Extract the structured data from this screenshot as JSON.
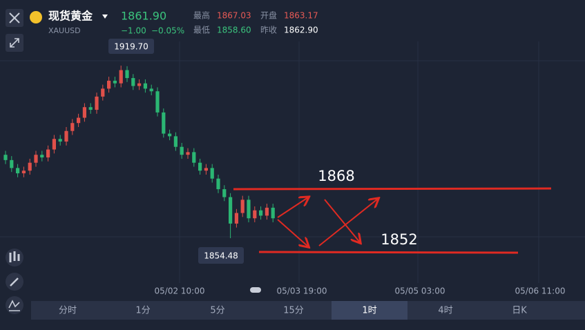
{
  "header": {
    "name": "现货黄金",
    "symbol": "XAUUSD",
    "price": "1861.90",
    "change": "−1.00",
    "change_pct": "−0.05%",
    "stats": [
      {
        "label": "最高",
        "value": "1867.03"
      },
      {
        "label": "开盘",
        "value": "1863.17"
      },
      {
        "label": "最低",
        "value": "1858.60"
      },
      {
        "label": "昨收",
        "value": "1862.90"
      }
    ]
  },
  "chart_data": {
    "type": "candlestick",
    "ylim": [
      1831,
      1944.5
    ],
    "open": [
      1886,
      1884,
      1881,
      1879,
      1880,
      1883,
      1886,
      1885,
      1888,
      1892,
      1891,
      1895,
      1898,
      1900,
      1904,
      1903,
      1908,
      1911,
      1914,
      1913,
      1918,
      1915,
      1912,
      1913,
      1911,
      1910,
      1902,
      1894,
      1893,
      1889,
      1886,
      1887,
      1883,
      1880,
      1881,
      1877,
      1873,
      1870,
      1860,
      1864,
      1869,
      1862,
      1865,
      1863,
      1866
    ],
    "high": [
      1887.5,
      1885.5,
      1882.5,
      1881.5,
      1884.5,
      1887.5,
      1887.5,
      1889.5,
      1893.5,
      1893.5,
      1896.5,
      1899.5,
      1901.5,
      1905.5,
      1905.5,
      1909.5,
      1912.5,
      1915.5,
      1915.5,
      1919.7,
      1919.5,
      1916.5,
      1914.5,
      1914.5,
      1912.5,
      1911.5,
      1903.5,
      1895.5,
      1894.5,
      1890.5,
      1888.5,
      1888.5,
      1884.5,
      1882.5,
      1882.5,
      1878.5,
      1874.5,
      1871.5,
      1865.5,
      1870.5,
      1870.5,
      1866.5,
      1866.5,
      1867.5,
      1867.5
    ],
    "low": [
      1882.5,
      1879.5,
      1877.5,
      1877.5,
      1878.5,
      1881.5,
      1883.5,
      1883.5,
      1886.5,
      1889.5,
      1889.5,
      1893.5,
      1896.5,
      1898.5,
      1901.5,
      1901.5,
      1906.5,
      1909.5,
      1911.5,
      1911.5,
      1913.5,
      1910.5,
      1910.5,
      1909.5,
      1908.5,
      1900.5,
      1892.5,
      1891.5,
      1887.5,
      1884.5,
      1884.5,
      1881.5,
      1878.5,
      1878.5,
      1875.5,
      1871.5,
      1868.5,
      1854.48,
      1858.5,
      1862.5,
      1860.5,
      1860.5,
      1861.5,
      1861.5,
      1860.5
    ],
    "close": [
      1884,
      1881,
      1879,
      1880,
      1883,
      1886,
      1885,
      1888,
      1892,
      1891,
      1895,
      1898,
      1900,
      1904,
      1903,
      1908,
      1911,
      1914,
      1913,
      1918,
      1915,
      1912,
      1913,
      1911,
      1910,
      1902,
      1894,
      1893,
      1889,
      1886,
      1887,
      1883,
      1880,
      1881,
      1877,
      1873,
      1870,
      1860,
      1864,
      1869,
      1862,
      1865,
      1863,
      1866,
      1862
    ],
    "up_color": "#e0504a",
    "down_color": "#2bb673",
    "high_label": "1919.70",
    "low_label": "1854.48",
    "annotations": [
      "1868",
      "1852"
    ],
    "x_labels": [
      "05/02 10:00",
      "05/03 19:00",
      "05/05 03:00",
      "05/06 11:00"
    ]
  },
  "tabs": [
    "分时",
    "1分",
    "5分",
    "15分",
    "1时",
    "4时",
    "日K"
  ],
  "selected_tab": 4
}
